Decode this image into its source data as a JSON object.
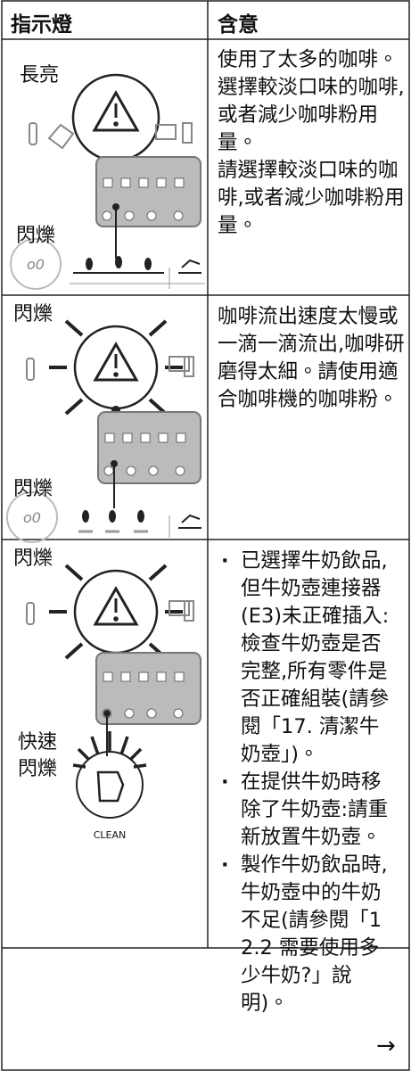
{
  "header": {
    "indicator": "指示燈",
    "meaning": "含意"
  },
  "rows": [
    {
      "states": [
        "長亮",
        "閃爍"
      ],
      "meaning": [
        "使用了太多的咖啡。選擇較淡口味的咖啡,或者減少咖啡粉用量。",
        "請選擇較淡口味的咖啡,或者減少咖啡粉用量。"
      ]
    },
    {
      "states": [
        "閃爍",
        "閃爍"
      ],
      "meaning": [
        "咖啡流出速度太慢或一滴一滴流出,咖啡研磨得太細。請使用適合咖啡機的咖啡粉。"
      ]
    },
    {
      "states": [
        "閃爍",
        "快速",
        "閃爍"
      ],
      "icon_label": "CLEAN",
      "meaning": [
        "已選擇牛奶飲品,但牛奶壺連接器(E3)未正確插入:檢查牛奶壺是否完整,所有零件是否正確組裝(請參閱「17. 清潔牛奶壺」)。",
        "在提供牛奶時移除了牛奶壺:請重新放置牛奶壺。",
        "製作牛奶飲品時,牛奶壺中的牛奶不足(請參閱「12.2 需要使用多少牛奶?」說明)。"
      ]
    }
  ],
  "footer": {
    "arrow": "→"
  }
}
